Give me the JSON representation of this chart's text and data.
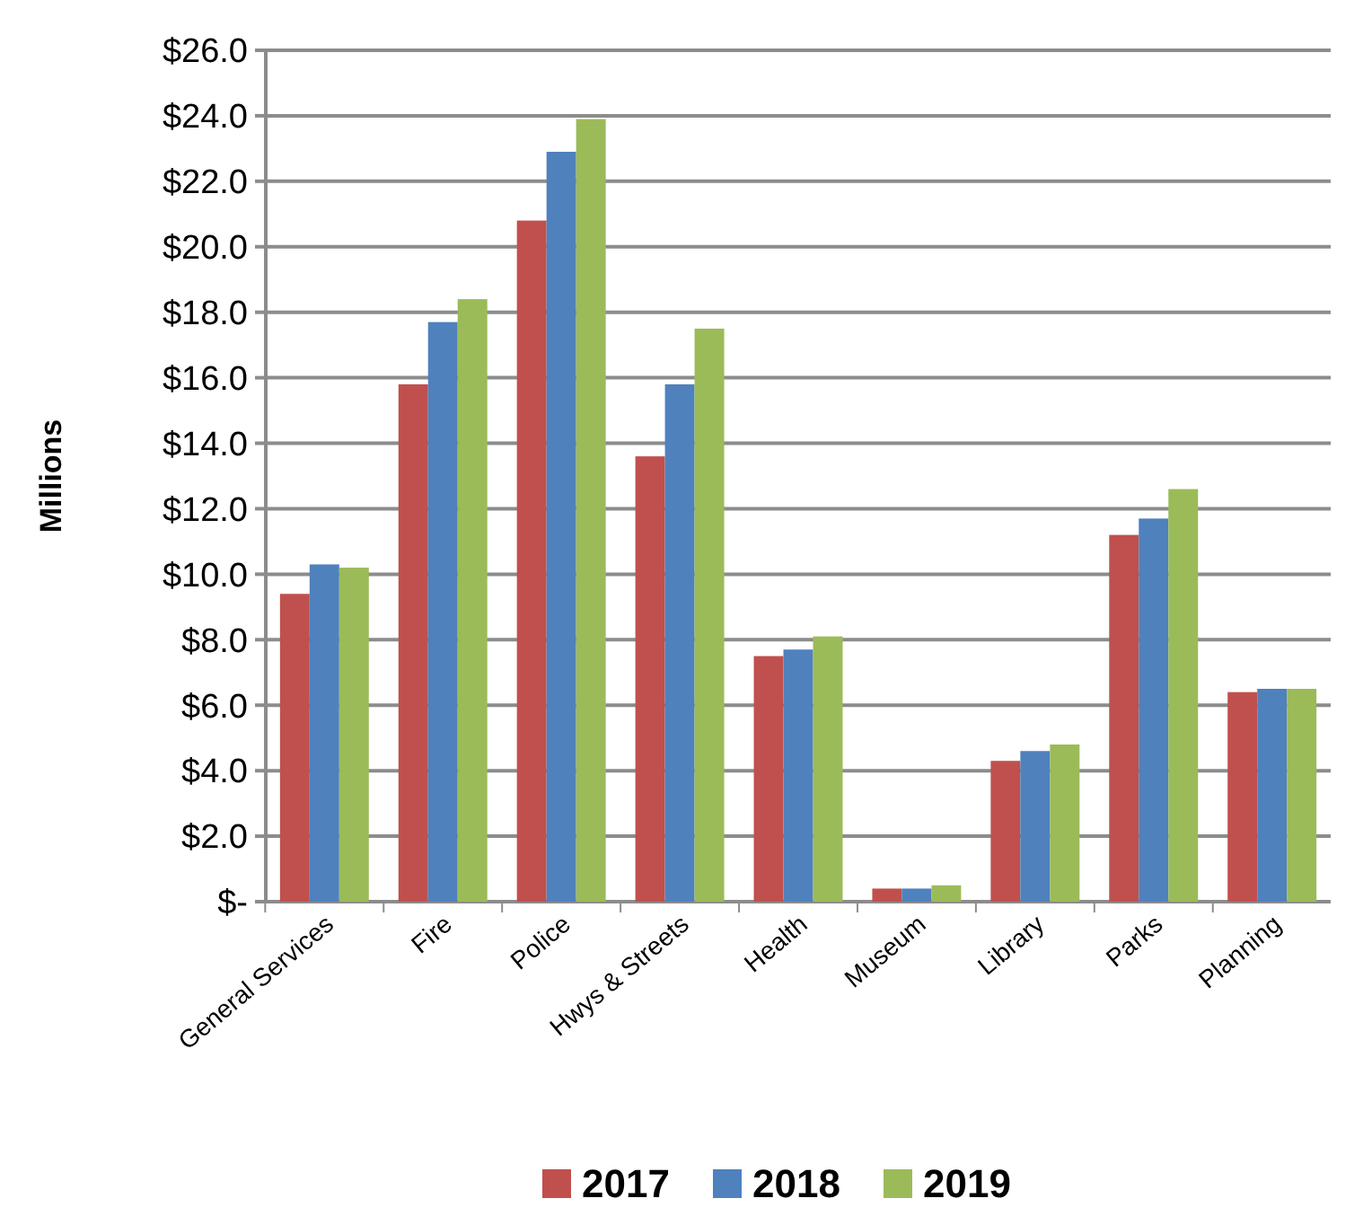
{
  "chart_data": {
    "type": "bar",
    "ylabel": "Millions",
    "categories": [
      "General Services",
      "Fire",
      "Police",
      "Hwys & Streets",
      "Health",
      "Museum",
      "Library",
      "Parks",
      "Planning"
    ],
    "series": [
      {
        "name": "2017",
        "color": "#c0504d",
        "values": [
          9.4,
          15.8,
          20.8,
          13.6,
          7.5,
          0.4,
          4.3,
          11.2,
          6.4
        ]
      },
      {
        "name": "2018",
        "color": "#4f81bd",
        "values": [
          10.3,
          17.7,
          22.9,
          15.8,
          7.7,
          0.4,
          4.6,
          11.7,
          6.5
        ]
      },
      {
        "name": "2019",
        "color": "#9bbb59",
        "values": [
          10.2,
          18.4,
          23.9,
          17.5,
          8.1,
          0.5,
          4.8,
          12.6,
          6.5
        ]
      }
    ],
    "ylim": [
      0,
      26
    ],
    "yticks": [
      {
        "value": 0,
        "label": "$-"
      },
      {
        "value": 2,
        "label": "$2.0"
      },
      {
        "value": 4,
        "label": "$4.0"
      },
      {
        "value": 6,
        "label": "$6.0"
      },
      {
        "value": 8,
        "label": "$8.0"
      },
      {
        "value": 10,
        "label": "$10.0"
      },
      {
        "value": 12,
        "label": "$12.0"
      },
      {
        "value": 14,
        "label": "$14.0"
      },
      {
        "value": 16,
        "label": "$16.0"
      },
      {
        "value": 18,
        "label": "$18.0"
      },
      {
        "value": 20,
        "label": "$20.0"
      },
      {
        "value": 22,
        "label": "$22.0"
      },
      {
        "value": 24,
        "label": "$24.0"
      },
      {
        "value": 26,
        "label": "$26.0"
      }
    ],
    "grid": "y",
    "legend": "bottom"
  }
}
